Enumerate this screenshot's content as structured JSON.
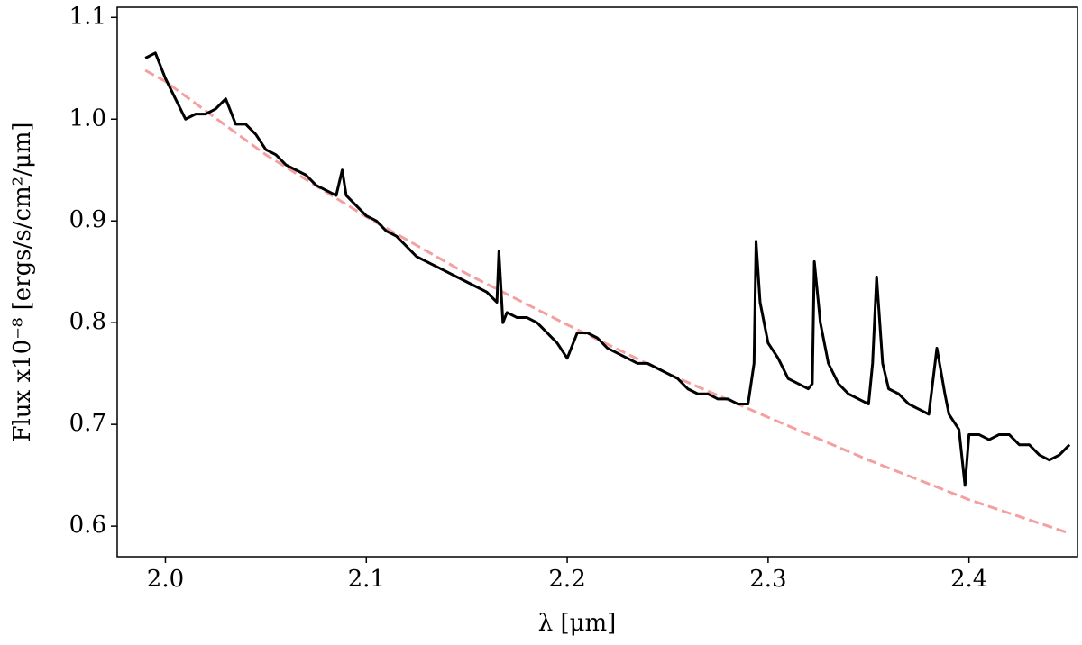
{
  "chart_data": {
    "type": "line",
    "xlabel": "λ [μm]",
    "ylabel": "Flux x10⁻⁸ [ergs/s/cm²/μm]",
    "xlim": [
      1.976,
      2.454
    ],
    "ylim": [
      0.57,
      1.11
    ],
    "xticks": [
      {
        "value": 2,
        "label": "2.0"
      },
      2.1,
      2.2,
      2.3,
      2.4
    ],
    "yticks": [
      0.6,
      0.7,
      0.8,
      0.9,
      {
        "value": 1,
        "label": "1.0"
      },
      1.1
    ],
    "grid": false,
    "series": [
      {
        "color": "#f4a0a0",
        "linestyle": "dashed",
        "x": [
          1.99,
          2.0,
          2.05,
          2.1,
          2.15,
          2.2,
          2.25,
          2.3,
          2.35,
          2.4,
          2.45
        ],
        "values": [
          1.048,
          1.037,
          0.965,
          0.904,
          0.848,
          0.798,
          0.75,
          0.707,
          0.665,
          0.626,
          0.593
        ]
      },
      {
        "color": "#000000",
        "linestyle": "solid",
        "x": [
          1.99,
          1.995,
          2.0,
          2.005,
          2.01,
          2.015,
          2.02,
          2.025,
          2.03,
          2.035,
          2.04,
          2.045,
          2.05,
          2.055,
          2.06,
          2.065,
          2.07,
          2.075,
          2.08,
          2.085,
          2.088,
          2.09,
          2.095,
          2.1,
          2.105,
          2.11,
          2.115,
          2.12,
          2.125,
          2.13,
          2.135,
          2.14,
          2.145,
          2.15,
          2.155,
          2.16,
          2.165,
          2.166,
          2.168,
          2.17,
          2.175,
          2.18,
          2.185,
          2.19,
          2.195,
          2.2,
          2.205,
          2.21,
          2.215,
          2.22,
          2.225,
          2.23,
          2.235,
          2.24,
          2.245,
          2.25,
          2.255,
          2.26,
          2.265,
          2.27,
          2.275,
          2.28,
          2.285,
          2.29,
          2.293,
          2.294,
          2.296,
          2.3,
          2.305,
          2.31,
          2.315,
          2.32,
          2.322,
          2.323,
          2.326,
          2.33,
          2.335,
          2.34,
          2.345,
          2.35,
          2.352,
          2.354,
          2.357,
          2.36,
          2.365,
          2.37,
          2.375,
          2.38,
          2.384,
          2.388,
          2.39,
          2.395,
          2.398,
          2.4,
          2.405,
          2.41,
          2.415,
          2.42,
          2.425,
          2.43,
          2.435,
          2.44,
          2.445,
          2.45
        ],
        "values": [
          1.06,
          1.065,
          1.04,
          1.02,
          1.0,
          1.005,
          1.005,
          1.01,
          1.02,
          0.995,
          0.995,
          0.985,
          0.97,
          0.965,
          0.955,
          0.95,
          0.945,
          0.935,
          0.93,
          0.925,
          0.95,
          0.925,
          0.915,
          0.905,
          0.9,
          0.89,
          0.885,
          0.875,
          0.865,
          0.86,
          0.855,
          0.85,
          0.845,
          0.84,
          0.835,
          0.83,
          0.82,
          0.87,
          0.8,
          0.81,
          0.805,
          0.805,
          0.8,
          0.79,
          0.78,
          0.765,
          0.79,
          0.79,
          0.785,
          0.775,
          0.77,
          0.765,
          0.76,
          0.76,
          0.755,
          0.75,
          0.745,
          0.735,
          0.73,
          0.73,
          0.725,
          0.725,
          0.72,
          0.72,
          0.76,
          0.88,
          0.82,
          0.78,
          0.765,
          0.745,
          0.74,
          0.735,
          0.74,
          0.86,
          0.8,
          0.76,
          0.74,
          0.73,
          0.725,
          0.72,
          0.76,
          0.845,
          0.76,
          0.735,
          0.73,
          0.72,
          0.715,
          0.71,
          0.775,
          0.73,
          0.71,
          0.695,
          0.64,
          0.69,
          0.69,
          0.685,
          0.69,
          0.69,
          0.68,
          0.68,
          0.67,
          0.665,
          0.67,
          0.68
        ]
      }
    ]
  }
}
